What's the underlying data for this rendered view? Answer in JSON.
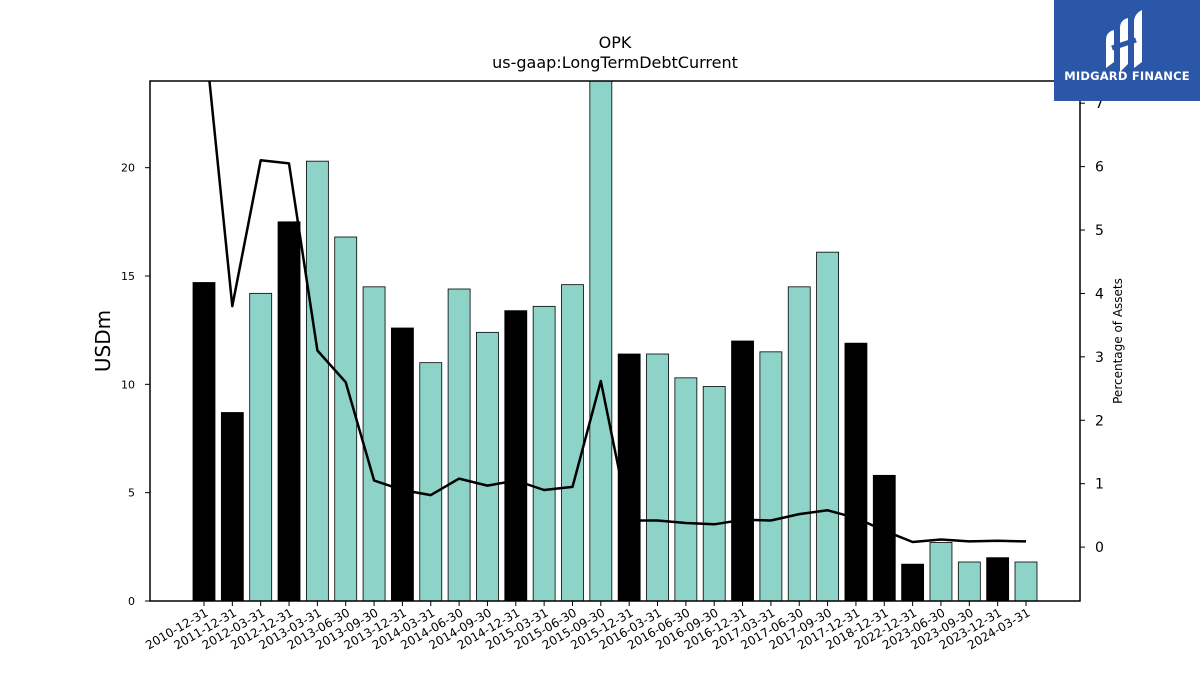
{
  "chart_data": {
    "type": "bar",
    "title": "OPK",
    "subtitle": "us-gaap:LongTermDebtCurrent",
    "ylabel": "USDm",
    "y2label": "Percentage of Assets",
    "ylim": [
      0,
      24
    ],
    "y2lim": [
      -0.85,
      7.35
    ],
    "yticks": [
      0,
      5,
      10,
      15,
      20
    ],
    "y2ticks": [
      0,
      1,
      2,
      3,
      4,
      5,
      6,
      7
    ],
    "grid": false,
    "colors": {
      "annual": "#000000",
      "quarterly": "#8dd3c7",
      "line": "#000000"
    },
    "categories": [
      "2010-12-31",
      "2011-12-31",
      "2012-03-31",
      "2012-12-31",
      "2013-03-31",
      "2013-06-30",
      "2013-09-30",
      "2013-12-31",
      "2014-03-31",
      "2014-06-30",
      "2014-09-30",
      "2014-12-31",
      "2015-03-31",
      "2015-06-30",
      "2015-09-30",
      "2015-12-31",
      "2016-03-31",
      "2016-06-30",
      "2016-09-30",
      "2016-12-31",
      "2017-03-31",
      "2017-06-30",
      "2017-09-30",
      "2017-12-31",
      "2018-12-31",
      "2022-12-31",
      "2023-06-30",
      "2023-09-30",
      "2023-12-31",
      "2024-03-31"
    ],
    "series": [
      {
        "type": "bar",
        "values": [
          14.7,
          8.7,
          14.2,
          17.5,
          20.3,
          16.8,
          14.5,
          12.6,
          11.0,
          14.4,
          12.4,
          13.4,
          13.6,
          14.6,
          24.2,
          11.4,
          11.4,
          10.3,
          9.9,
          12.0,
          11.5,
          14.5,
          16.1,
          11.9,
          5.8,
          1.7,
          2.7,
          1.8,
          2.0,
          1.8
        ]
      },
      {
        "type": "line",
        "axis": "right",
        "values": [
          8.2,
          3.8,
          6.1,
          6.05,
          3.1,
          2.6,
          1.05,
          0.9,
          0.82,
          1.08,
          0.97,
          1.05,
          0.9,
          0.95,
          2.62,
          0.42,
          0.42,
          0.38,
          0.36,
          0.43,
          0.42,
          0.52,
          0.58,
          0.46,
          0.26,
          0.08,
          0.12,
          0.09,
          0.1,
          0.09
        ]
      }
    ],
    "bar_kinds": [
      "annual",
      "annual",
      "quarterly",
      "annual",
      "quarterly",
      "quarterly",
      "quarterly",
      "annual",
      "quarterly",
      "quarterly",
      "quarterly",
      "annual",
      "quarterly",
      "quarterly",
      "quarterly",
      "annual",
      "quarterly",
      "quarterly",
      "quarterly",
      "annual",
      "quarterly",
      "quarterly",
      "quarterly",
      "annual",
      "annual",
      "annual",
      "quarterly",
      "quarterly",
      "annual",
      "quarterly"
    ]
  },
  "logo": {
    "text": "MIDGARD FINANCE",
    "icon": "midgard-logo-icon"
  }
}
